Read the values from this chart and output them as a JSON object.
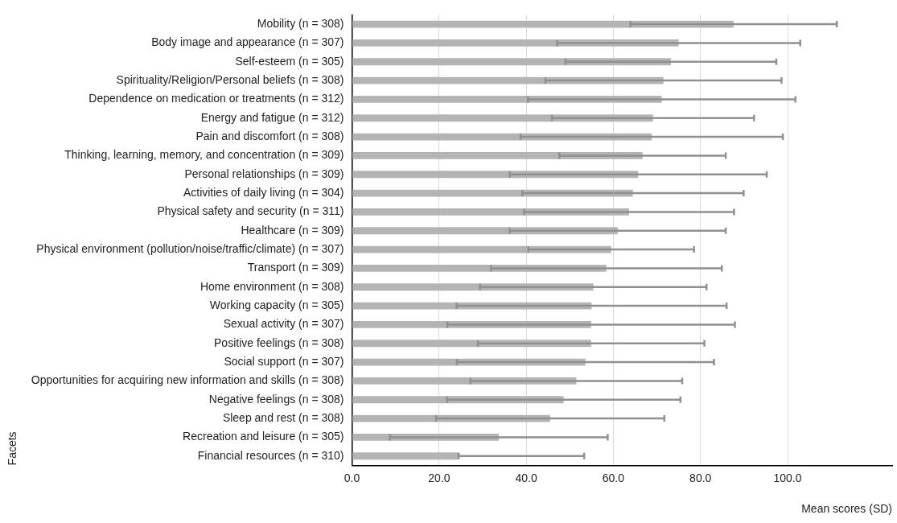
{
  "chart_data": {
    "type": "bar",
    "orientation": "horizontal",
    "xlabel": "Mean scores (SD)",
    "ylabel": "Facets",
    "categories": [
      "Mobility (n = 308)",
      "Body image and appearance (n = 307)",
      "Self-esteem (n = 305)",
      "Spirituality/Religion/Personal beliefs (n = 308)",
      "Dependence on medication or treatments (n = 312)",
      "Energy and fatigue (n = 312)",
      "Pain and discomfort (n = 308)",
      "Thinking, learning, memory, and concentration (n = 309)",
      "Personal relationships (n = 309)",
      "Activities of daily living (n = 304)",
      "Physical safety and security (n = 311)",
      "Healthcare (n = 309)",
      "Physical environment (pollution/noise/traffic/climate) (n = 307)",
      "Transport (n = 309)",
      "Home environment (n = 308)",
      "Working capacity (n = 305)",
      "Sexual activity (n = 307)",
      "Positive feelings (n = 308)",
      "Social support (n = 307)",
      "Opportunities for acquiring new information and skills (n = 308)",
      "Negative feelings (n = 308)",
      "Sleep and rest (n = 308)",
      "Recreation and leisure (n = 305)",
      "Financial resources (n = 310)"
    ],
    "values": [
      87.6,
      75.0,
      73.2,
      71.5,
      71.1,
      69.1,
      68.8,
      66.7,
      65.7,
      64.5,
      63.6,
      61.0,
      59.5,
      58.4,
      55.4,
      55.0,
      54.9,
      54.9,
      53.6,
      51.5,
      48.6,
      45.5,
      33.7,
      24.5
    ],
    "errors": [
      23.7,
      27.9,
      24.2,
      27.1,
      30.7,
      23.2,
      30.1,
      19.1,
      29.5,
      25.4,
      24.1,
      24.8,
      19.0,
      26.5,
      26.0,
      31.0,
      33.0,
      26.0,
      29.5,
      24.3,
      26.8,
      26.2,
      25.0,
      [
        24.5,
        53.3
      ]
    ],
    "color": "#b4b4b4",
    "xlim": [
      0,
      124
    ],
    "xticks": [
      {
        "value": 0,
        "label": "0.0"
      },
      {
        "value": 20,
        "label": "20.0"
      },
      {
        "value": 40,
        "label": "40.0"
      },
      {
        "value": 60,
        "label": "60.0"
      },
      {
        "value": 80,
        "label": "80.0"
      },
      {
        "value": 100,
        "label": "100.0"
      }
    ],
    "grid": "x",
    "legend": false
  }
}
